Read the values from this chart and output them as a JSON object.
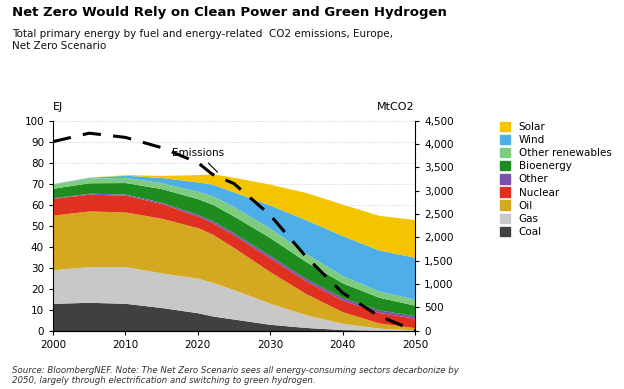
{
  "title": "Net Zero Would Rely on Clean Power and Green Hydrogen",
  "subtitle": "Total primary energy by fuel and energy-related  CO2 emissions, Europe,\nNet Zero Scenario",
  "ylabel_left": "EJ",
  "ylabel_right": "MtCO2",
  "footnote": "Source: BloombergNEF. Note: The Net Zero Scenario sees all energy-consuming sectors decarbonize by\n2050, largely through electrification and switching to green hydrogen.",
  "years": [
    2000,
    2005,
    2010,
    2015,
    2020,
    2022,
    2025,
    2030,
    2035,
    2040,
    2045,
    2050
  ],
  "coal": [
    13.0,
    13.5,
    13.0,
    11.0,
    8.5,
    7.0,
    5.5,
    3.0,
    1.5,
    0.5,
    0.2,
    0.1
  ],
  "gas": [
    16.0,
    17.0,
    17.5,
    16.5,
    16.5,
    16.0,
    14.0,
    10.0,
    6.0,
    3.0,
    1.0,
    0.3
  ],
  "oil": [
    26.0,
    26.5,
    26.0,
    26.0,
    24.0,
    23.0,
    20.0,
    15.0,
    10.0,
    5.5,
    2.5,
    1.0
  ],
  "nuclear": [
    8.0,
    8.0,
    8.0,
    7.0,
    5.5,
    5.5,
    6.0,
    6.5,
    6.0,
    5.5,
    5.0,
    4.5
  ],
  "other": [
    0.3,
    0.4,
    0.5,
    0.6,
    0.8,
    0.9,
    1.0,
    1.2,
    1.2,
    1.2,
    1.2,
    1.2
  ],
  "bioenergy": [
    4.5,
    5.0,
    5.5,
    6.5,
    7.5,
    7.8,
    8.0,
    8.5,
    8.0,
    7.0,
    6.0,
    5.0
  ],
  "other_renewables": [
    2.0,
    2.2,
    2.5,
    2.8,
    3.5,
    4.0,
    4.5,
    4.5,
    4.0,
    3.5,
    3.0,
    2.8
  ],
  "wind": [
    0.2,
    0.4,
    1.0,
    2.5,
    4.5,
    5.5,
    7.0,
    11.0,
    16.0,
    19.0,
    19.5,
    20.0
  ],
  "solar": [
    0.05,
    0.1,
    0.3,
    1.0,
    3.5,
    5.0,
    7.0,
    10.0,
    13.0,
    15.0,
    16.5,
    18.0
  ],
  "emissions": [
    4050,
    4230,
    4140,
    3920,
    3600,
    3350,
    3150,
    2475,
    1575,
    810,
    315,
    0
  ],
  "emissions_years": [
    2000,
    2005,
    2010,
    2015,
    2020,
    2022,
    2025,
    2030,
    2035,
    2040,
    2045,
    2050
  ],
  "colors": {
    "coal": "#404040",
    "gas": "#c8c8c8",
    "oil": "#d4a820",
    "nuclear": "#e03020",
    "other": "#7b52ab",
    "bioenergy": "#1e8c1e",
    "other_renewables": "#7fcc7f",
    "wind": "#4daee8",
    "solar": "#f5c400"
  },
  "ylim_left": [
    0,
    100
  ],
  "ylim_right": [
    0,
    4500
  ],
  "xticks": [
    2000,
    2010,
    2020,
    2030,
    2040,
    2050
  ],
  "yticks_left": [
    0,
    10,
    20,
    30,
    40,
    50,
    60,
    70,
    80,
    90,
    100
  ],
  "yticks_right": [
    0,
    500,
    1000,
    1500,
    2000,
    2500,
    3000,
    3500,
    4000,
    4500
  ]
}
